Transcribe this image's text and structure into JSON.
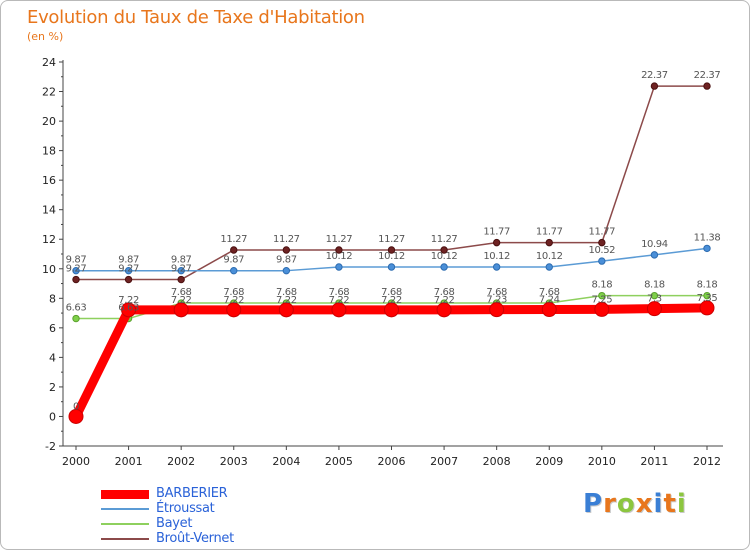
{
  "title": "Evolution du Taux de Taxe d'Habitation",
  "subtitle": "(en %)",
  "logo": {
    "text": "Proxiti",
    "colors": [
      "#3a7fd5",
      "#e8761c",
      "#8cc63f",
      "#e8761c",
      "#3a7fd5",
      "#e8761c",
      "#8cc63f"
    ]
  },
  "chart_data": {
    "type": "line",
    "x": [
      "2000",
      "2001",
      "2002",
      "2003",
      "2004",
      "2005",
      "2006",
      "2007",
      "2008",
      "2009",
      "2010",
      "2011",
      "2012"
    ],
    "ylim": [
      -2,
      24
    ],
    "yticks": [
      "-2",
      "0",
      "2",
      "4",
      "6",
      "8",
      "10",
      "12",
      "14",
      "16",
      "18",
      "20",
      "22",
      "24"
    ],
    "grid": false,
    "legend_position": "bottom-left",
    "series": [
      {
        "name": "BARBERIER",
        "color": "#ff0000",
        "values": [
          0,
          7.22,
          7.22,
          7.22,
          7.22,
          7.22,
          7.22,
          7.22,
          7.23,
          7.24,
          7.25,
          7.3,
          7.35
        ],
        "labels": [
          "0",
          "7.22",
          "7.22",
          "7.22",
          "7.22",
          "7.22",
          "7.22",
          "7.22",
          "7.23",
          "7.24",
          "7.25",
          "7.3",
          "7.35"
        ]
      },
      {
        "name": "Étroussat",
        "color": "#5b9bd5",
        "values": [
          9.87,
          9.87,
          9.87,
          9.87,
          9.87,
          10.12,
          10.12,
          10.12,
          10.12,
          10.12,
          10.52,
          10.94,
          11.38
        ],
        "labels": [
          "9.87",
          "9.87",
          "9.87",
          "9.87",
          "9.87",
          "10.12",
          "10.12",
          "10.12",
          "10.12",
          "10.12",
          "10.52",
          "10.94",
          "11.38"
        ]
      },
      {
        "name": "Bayet",
        "color": "#8ed05e",
        "values": [
          6.63,
          6.63,
          7.68,
          7.68,
          7.68,
          7.68,
          7.68,
          7.68,
          7.68,
          7.68,
          8.18,
          8.18,
          8.18
        ],
        "labels": [
          "6.63",
          "6.63",
          "7.68",
          "7.68",
          "7.68",
          "7.68",
          "7.68",
          "7.68",
          "7.68",
          "7.68",
          "8.18",
          "8.18",
          "8.18"
        ]
      },
      {
        "name": "Broût-Vernet",
        "color": "#8c4a4a",
        "values": [
          9.27,
          9.27,
          9.27,
          11.27,
          11.27,
          11.27,
          11.27,
          11.27,
          11.77,
          11.77,
          11.77,
          22.37,
          22.37
        ],
        "labels": [
          "9.27",
          "9.27",
          "9.27",
          "11.27",
          "11.27",
          "11.27",
          "11.27",
          "11.27",
          "11.77",
          "11.77",
          "11.77",
          "22.37",
          "22.37"
        ]
      }
    ]
  }
}
